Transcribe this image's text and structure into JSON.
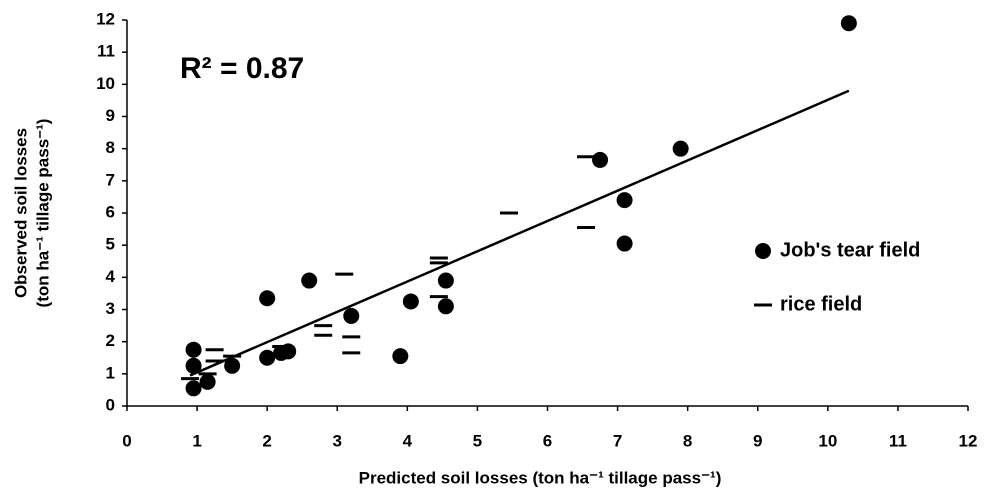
{
  "chart_data": {
    "type": "scatter",
    "xlabel": "Predicted soil losses (ton ha⁻¹ tillage pass⁻¹)",
    "ylabel": [
      "Observed soil losses",
      "(ton ha⁻¹ tillage pass⁻¹)"
    ],
    "annotation": "R² = 0.87",
    "xlim": [
      0,
      12
    ],
    "xticks": [
      0,
      1,
      2,
      3,
      4,
      5,
      6,
      7,
      8,
      9,
      10,
      11,
      12
    ],
    "ylim": [
      0,
      12
    ],
    "yticks": [
      0,
      1,
      2,
      3,
      4,
      5,
      6,
      7,
      8,
      9,
      10,
      11,
      12
    ],
    "grid": false,
    "legend": "right",
    "series": [
      {
        "name": "Job's tear field",
        "color": "#000000",
        "marker": "circle",
        "x": [
          0.95,
          0.95,
          0.95,
          1.15,
          1.5,
          2.0,
          2.0,
          2.2,
          2.3,
          2.6,
          3.2,
          3.9,
          4.05,
          4.55,
          4.55,
          6.75,
          7.1,
          7.1,
          7.9,
          10.3
        ],
        "values": [
          1.75,
          1.25,
          0.55,
          0.75,
          1.25,
          3.35,
          1.5,
          1.65,
          1.7,
          3.9,
          2.8,
          1.55,
          3.25,
          3.9,
          3.1,
          7.65,
          6.4,
          5.05,
          8.0,
          11.9
        ]
      },
      {
        "name": "rice field",
        "color": "#000000",
        "marker": "dash",
        "x": [
          0.9,
          1.15,
          1.25,
          1.25,
          1.5,
          2.2,
          2.8,
          2.8,
          3.2,
          3.2,
          3.1,
          4.45,
          4.45,
          4.45,
          5.45,
          6.55,
          6.55
        ],
        "values": [
          0.85,
          1.0,
          1.75,
          1.4,
          1.55,
          1.85,
          2.5,
          2.2,
          2.15,
          1.65,
          4.1,
          4.6,
          4.45,
          3.4,
          6.0,
          5.55,
          7.75
        ]
      }
    ],
    "trendline": {
      "color": "#000000",
      "x": [
        0.9,
        10.3
      ],
      "values": [
        0.95,
        9.8
      ]
    }
  }
}
